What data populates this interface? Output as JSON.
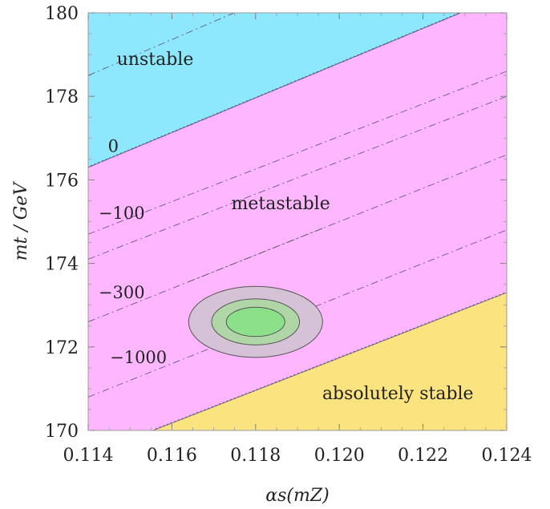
{
  "chart_data": {
    "type": "area",
    "xlabel": "αs(mZ)",
    "ylabel": "mt / GeV",
    "xlim": [
      0.114,
      0.124
    ],
    "ylim": [
      170,
      180
    ],
    "x_ticks": [
      0.114,
      0.116,
      0.118,
      0.12,
      0.122,
      0.124
    ],
    "x_tick_labels": [
      "0.114",
      "0.116",
      "0.118",
      "0.120",
      "0.122",
      "0.124"
    ],
    "y_ticks": [
      170,
      172,
      174,
      176,
      178,
      180
    ],
    "y_tick_labels": [
      "170",
      "172",
      "174",
      "176",
      "178",
      "180"
    ],
    "regions": [
      {
        "name": "unstable",
        "label": "unstable",
        "color": "#8ee8fd",
        "label_pos": [
          0.1156,
          178.75
        ]
      },
      {
        "name": "metastable",
        "label": "metastable",
        "color": "#feb6fe",
        "label_pos": [
          0.1186,
          175.3
        ]
      },
      {
        "name": "absolutely stable",
        "label": "absolutely stable",
        "color": "#fbe37f",
        "label_pos": [
          0.1214,
          170.75
        ]
      }
    ],
    "boundaries": {
      "unstable": [
        [
          0.114,
          176.3
        ],
        [
          0.1229,
          180
        ]
      ],
      "stable": [
        [
          0.11555,
          170
        ],
        [
          0.124,
          173.3
        ]
      ]
    },
    "contours": [
      {
        "label": "0",
        "points": [
          [
            0.114,
            176.3
          ],
          [
            0.1229,
            180
          ]
        ],
        "label_pos": [
          0.1146,
          176.8
        ]
      },
      {
        "label": "",
        "points": [
          [
            0.114,
            178.5
          ],
          [
            0.124,
            182.8
          ]
        ]
      },
      {
        "label": "−100",
        "points": [
          [
            0.114,
            174.7
          ],
          [
            0.124,
            178.6
          ]
        ],
        "label_pos": [
          0.1148,
          175.2
        ]
      },
      {
        "label": "",
        "points": [
          [
            0.114,
            174.1
          ],
          [
            0.124,
            178.0
          ]
        ]
      },
      {
        "label": "−300",
        "points": [
          [
            0.114,
            172.6
          ],
          [
            0.124,
            176.6
          ]
        ],
        "label_pos": [
          0.1148,
          173.3
        ]
      },
      {
        "label": "−1000",
        "points": [
          [
            0.114,
            170.8
          ],
          [
            0.124,
            174.8
          ]
        ],
        "label_pos": [
          0.1152,
          171.75
        ]
      }
    ],
    "ellipses": [
      {
        "level": "outer",
        "center": [
          0.118,
          172.6
        ],
        "radii": [
          0.0016,
          0.85
        ],
        "color": "#d6c2d7"
      },
      {
        "level": "middle",
        "center": [
          0.118,
          172.6
        ],
        "radii": [
          0.00105,
          0.55
        ],
        "color": "#b0d6a8"
      },
      {
        "level": "inner",
        "center": [
          0.118,
          172.6
        ],
        "radii": [
          0.0007,
          0.35
        ],
        "color": "#8de08a"
      }
    ]
  }
}
